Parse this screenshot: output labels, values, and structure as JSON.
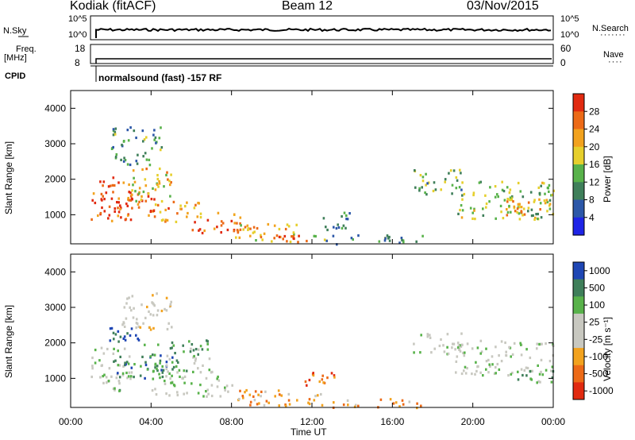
{
  "header": {
    "station": "Kodiak (fitACF)",
    "beam": "Beam 12",
    "date": "03/Nov/2015"
  },
  "aux": {
    "nsky_label": "N.Sky",
    "nsky_ticks": [
      "10^5",
      "10^0"
    ],
    "nsearch_label": "N.Search",
    "nsearch_ticks": [
      "10^5",
      "10^0"
    ],
    "freq_label": "Freq.",
    "freq_unit": "[MHz]",
    "freq_ticks": [
      "18",
      "8"
    ],
    "nave_label": "Nave",
    "nave_ticks": [
      "60",
      "0"
    ],
    "cpid_label": "CPID",
    "cpid_text": "normalsound (fast) -157 RF"
  },
  "colors": {
    "power": [
      "#1e24e6",
      "#2c57a8",
      "#3f7f5a",
      "#58b24a",
      "#e6cf2c",
      "#f2a21e",
      "#ec6a17",
      "#e12a10"
    ],
    "velocity": [
      "#e12a10",
      "#ec6a17",
      "#f2a21e",
      "#c8c8c0",
      "#c8c8c0",
      "#58b24a",
      "#3f7f5a",
      "#1e46b4"
    ]
  },
  "chart_data": [
    {
      "type": "heatmap",
      "name": "power",
      "ylabel": "Slant Range [km]",
      "xlabel": "Time UT",
      "xlim_hours": [
        0,
        24
      ],
      "ylim_km": [
        180,
        4500
      ],
      "y_ticks": [
        "1000",
        "2000",
        "3000",
        "4000"
      ],
      "x_ticks": [
        "00:00",
        "04:00",
        "08:00",
        "12:00",
        "16:00",
        "20:00",
        "00:00"
      ],
      "colorbar": {
        "label": "Power [dB]",
        "ticks": [
          "4",
          "8",
          "12",
          "16",
          "20",
          "24",
          "28"
        ],
        "range": [
          0,
          30
        ]
      },
      "regions": [
        {
          "t": [
            1.0,
            3.2
          ],
          "r": [
            800,
            2100
          ],
          "level": 27
        },
        {
          "t": [
            2.0,
            4.2
          ],
          "r": [
            1000,
            1700
          ],
          "level": 25
        },
        {
          "t": [
            3.0,
            5.0
          ],
          "r": [
            1400,
            2400
          ],
          "level": 18
        },
        {
          "t": [
            4.0,
            6.5
          ],
          "r": [
            800,
            1400
          ],
          "level": 22
        },
        {
          "t": [
            6.0,
            8.5
          ],
          "r": [
            500,
            1100
          ],
          "level": 24
        },
        {
          "t": [
            8.0,
            11.5
          ],
          "r": [
            250,
            800
          ],
          "level": 20
        },
        {
          "t": [
            9.5,
            12.5
          ],
          "r": [
            250,
            450
          ],
          "level": 26
        },
        {
          "t": [
            12.0,
            17.5
          ],
          "r": [
            200,
            450
          ],
          "level": 10
        },
        {
          "t": [
            12.5,
            14.0
          ],
          "r": [
            600,
            1200
          ],
          "level": 8
        },
        {
          "t": [
            17.0,
            19.5
          ],
          "r": [
            1600,
            2300
          ],
          "level": 12
        },
        {
          "t": [
            19.0,
            24.0
          ],
          "r": [
            900,
            2000
          ],
          "level": 14
        },
        {
          "t": [
            21.5,
            24.0
          ],
          "r": [
            1000,
            1500
          ],
          "level": 20
        },
        {
          "t": [
            2.0,
            4.5
          ],
          "r": [
            2400,
            3500
          ],
          "level": 10
        }
      ]
    },
    {
      "type": "heatmap",
      "name": "velocity",
      "ylabel": "Slant Range [km]",
      "xlabel": "Time UT",
      "xlim_hours": [
        0,
        24
      ],
      "ylim_km": [
        180,
        4500
      ],
      "y_ticks": [
        "1000",
        "2000",
        "3000",
        "4000"
      ],
      "x_ticks": [
        "00:00",
        "04:00",
        "08:00",
        "12:00",
        "16:00",
        "20:00",
        "00:00"
      ],
      "colorbar": {
        "label": "Velocity [m s⁻¹]",
        "ticks": [
          "1000",
          "500",
          "100",
          "25",
          "-25",
          "-100",
          "-500",
          "-1000"
        ]
      },
      "regions": [
        {
          "t": [
            1.0,
            3.0
          ],
          "r": [
            700,
            1900
          ],
          "level": 4
        },
        {
          "t": [
            2.0,
            5.5
          ],
          "r": [
            1000,
            1700
          ],
          "level": 6
        },
        {
          "t": [
            1.5,
            3.5
          ],
          "r": [
            2000,
            2500
          ],
          "level": 7
        },
        {
          "t": [
            3.5,
            7.0
          ],
          "r": [
            1200,
            2100
          ],
          "level": 5
        },
        {
          "t": [
            4.0,
            8.0
          ],
          "r": [
            500,
            1100
          ],
          "level": 4
        },
        {
          "t": [
            2.0,
            3.0
          ],
          "r": [
            600,
            800
          ],
          "level": 5
        },
        {
          "t": [
            8.0,
            13.0
          ],
          "r": [
            250,
            700
          ],
          "level": 2
        },
        {
          "t": [
            11.5,
            13.5
          ],
          "r": [
            800,
            1200
          ],
          "level": 1
        },
        {
          "t": [
            13.0,
            17.5
          ],
          "r": [
            200,
            450
          ],
          "level": 2
        },
        {
          "t": [
            17.0,
            19.5
          ],
          "r": [
            1700,
            2300
          ],
          "level": 4
        },
        {
          "t": [
            19.0,
            24.0
          ],
          "r": [
            1100,
            2100
          ],
          "level": 4
        },
        {
          "t": [
            22.0,
            24.0
          ],
          "r": [
            900,
            1300
          ],
          "level": 5
        },
        {
          "t": [
            2.5,
            5.0
          ],
          "r": [
            2400,
            3500
          ],
          "level": 3
        }
      ]
    }
  ]
}
